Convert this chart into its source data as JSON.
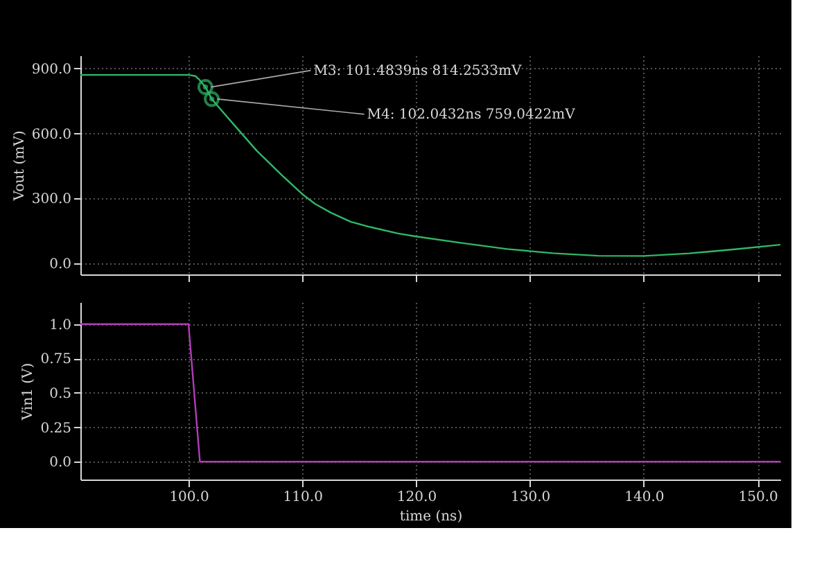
{
  "chart_data": [
    {
      "type": "line",
      "ylabel": "Vout (mV)",
      "grid": true,
      "tick_labels": "y",
      "marker": "none",
      "xlim": [
        90.5,
        152
      ],
      "xticks": [
        {
          "value": 100,
          "label": null
        },
        {
          "value": 110,
          "label": null
        },
        {
          "value": 120,
          "label": null
        },
        {
          "value": 130,
          "label": null
        },
        {
          "value": 140,
          "label": null
        },
        {
          "value": 150,
          "label": null
        }
      ],
      "ylim": [
        -50,
        960
      ],
      "yticks": [
        {
          "value": 0,
          "label": "0.0"
        },
        {
          "value": 300,
          "label": "300.0"
        },
        {
          "value": 600,
          "label": "600.0"
        },
        {
          "value": 900,
          "label": "900.0"
        }
      ],
      "x": [
        90.5,
        100,
        100.6,
        101.0,
        101.4839,
        102.0432,
        103,
        104,
        106,
        108.3,
        110,
        111.1,
        112.5,
        114.3,
        116,
        118.4,
        120,
        124,
        128,
        132,
        136,
        140,
        144,
        148,
        152
      ],
      "series": [
        {
          "color": "#2fb866",
          "values": [
            870,
            870,
            865,
            845,
            814,
            759,
            700,
            640,
            520,
            403,
            320,
            276,
            235,
            192,
            168,
            139,
            125,
            95,
            67,
            48,
            36,
            35,
            47,
            66,
            87
          ]
        }
      ],
      "annotations": [
        {
          "text": "M3: 101.4839ns 814.2533mV",
          "x": 101.4839,
          "y": 814.2533
        },
        {
          "text": "M4: 102.0432ns 759.0422mV",
          "x": 102.0432,
          "y": 759.0422
        }
      ]
    },
    {
      "type": "line",
      "ylabel": "Vin1 (V)",
      "xlabel": "time (ns)",
      "grid": true,
      "marker": "none",
      "xlim": [
        90.5,
        152
      ],
      "xticks": [
        {
          "value": 100,
          "label": "100.0"
        },
        {
          "value": 110,
          "label": "110.0"
        },
        {
          "value": 120,
          "label": "120.0"
        },
        {
          "value": 130,
          "label": "130.0"
        },
        {
          "value": 140,
          "label": "140.0"
        },
        {
          "value": 150,
          "label": "150.0"
        }
      ],
      "ylim": [
        -0.13,
        1.16
      ],
      "yticks": [
        {
          "value": 0,
          "label": "0.0"
        },
        0.25,
        {
          "value": 0.5,
          "label": "0.5"
        },
        0.75,
        {
          "value": 1,
          "label": "1.0"
        }
      ],
      "x": [
        90.5,
        100,
        101,
        152
      ],
      "series": [
        {
          "color": "#b23cb8",
          "values": [
            1,
            1,
            0,
            0
          ]
        }
      ]
    }
  ]
}
